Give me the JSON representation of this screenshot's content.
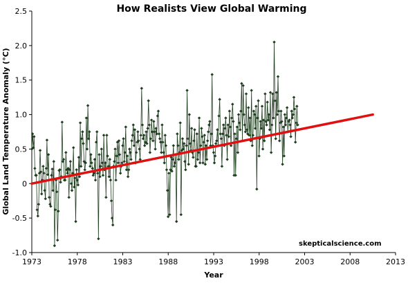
{
  "chart_data": {
    "type": "line",
    "title": "How Realists View Global Warming",
    "xlabel": "Year",
    "ylabel": "Global Land Temperature Anomaly (°C)",
    "watermark": "skepticalscience.com",
    "xlim": [
      1973,
      2013
    ],
    "ylim": [
      -1.0,
      2.5
    ],
    "x_ticks": [
      1973,
      1978,
      1983,
      1988,
      1993,
      1998,
      2003,
      2008,
      2013
    ],
    "y_ticks": [
      "-1.0",
      "-0.5",
      "0",
      "0.5",
      "1.0",
      "1.5",
      "2.0",
      "2.5"
    ],
    "grid": false,
    "colors": {
      "series": "#1f3d1f",
      "marker": "#1f3d1f",
      "trend": "#e01010"
    },
    "series": [
      {
        "name": "",
        "style": "line-with-diamond-markers",
        "x_start": 1973.0,
        "x_step": 0.0833,
        "values": [
          0.5,
          0.72,
          0.52,
          0.68,
          0.22,
          0.12,
          0.12,
          -0.38,
          -0.47,
          -0.3,
          0.15,
          0.48,
          0.17,
          -0.15,
          0.05,
          0.25,
          0.15,
          -0.1,
          -0.22,
          0.22,
          0.63,
          0.13,
          0.42,
          -0.2,
          -0.3,
          -0.33,
          0.12,
          0.21,
          -0.1,
          0.32,
          -0.9,
          -0.38,
          0.05,
          -0.12,
          -0.82,
          -0.4,
          0.19,
          0.2,
          0.02,
          0.1,
          0.89,
          0.32,
          0.35,
          0.05,
          0.05,
          0.45,
          0.2,
          0.15,
          0.22,
          -0.2,
          0.2,
          0.32,
          0.0,
          -0.1,
          0.15,
          0.52,
          -0.05,
          0.08,
          -0.55,
          0.2,
          0.05,
          -0.02,
          0.38,
          0.1,
          0.88,
          0.25,
          0.65,
          0.75,
          0.58,
          0.32,
          0.2,
          0.3,
          0.95,
          0.5,
          1.13,
          0.65,
          0.75,
          0.25,
          0.42,
          0.3,
          0.22,
          0.12,
          0.15,
          0.35,
          0.05,
          0.6,
          0.75,
          0.15,
          -0.8,
          0.42,
          0.1,
          0.25,
          0.5,
          0.3,
          0.12,
          0.7,
          0.2,
          0.3,
          -0.2,
          0.7,
          0.4,
          0.25,
          0.1,
          0.35,
          0.05,
          -0.25,
          -0.5,
          -0.6,
          0.25,
          0.32,
          0.5,
          0.05,
          0.4,
          0.6,
          0.3,
          0.62,
          0.42,
          0.15,
          0.25,
          0.3,
          0.55,
          0.65,
          0.32,
          0.45,
          0.82,
          0.2,
          0.4,
          0.1,
          0.2,
          0.5,
          0.45,
          0.35,
          0.62,
          0.7,
          0.85,
          0.55,
          0.78,
          0.3,
          0.45,
          0.6,
          0.75,
          0.62,
          0.5,
          0.35,
          0.7,
          1.38,
          0.85,
          0.65,
          0.7,
          0.55,
          0.6,
          0.75,
          0.58,
          0.8,
          1.2,
          0.85,
          0.45,
          0.65,
          0.92,
          0.75,
          0.62,
          0.9,
          0.75,
          0.5,
          0.8,
          0.72,
          0.98,
          1.05,
          0.72,
          0.65,
          0.6,
          0.45,
          0.85,
          0.6,
          0.45,
          0.3,
          0.7,
          0.55,
          0.2,
          -0.1,
          -0.48,
          0.15,
          -0.45,
          0.2,
          0.38,
          0.18,
          0.35,
          0.55,
          0.25,
          0.3,
          0.42,
          -0.55,
          0.72,
          0.55,
          0.35,
          0.45,
          0.88,
          -0.45,
          0.48,
          0.65,
          0.5,
          0.58,
          0.32,
          0.2,
          0.55,
          1.35,
          0.65,
          0.28,
          1.0,
          0.58,
          0.48,
          0.8,
          0.45,
          0.38,
          0.62,
          0.78,
          0.25,
          0.25,
          0.72,
          0.35,
          0.45,
          0.95,
          0.3,
          0.55,
          0.8,
          0.68,
          0.3,
          0.6,
          0.7,
          0.28,
          0.55,
          0.35,
          0.62,
          0.75,
          0.85,
          0.9,
          0.55,
          0.72,
          1.58,
          0.55,
          0.45,
          0.3,
          0.4,
          0.58,
          0.62,
          0.78,
          0.55,
          0.98,
          1.22,
          0.72,
          0.65,
          0.25,
          0.72,
          0.85,
          0.55,
          0.8,
          0.95,
          0.7,
          0.35,
          0.85,
          0.68,
          1.05,
          0.82,
          0.55,
          0.95,
          1.15,
          0.9,
          0.12,
          0.72,
          0.12,
          0.65,
          0.82,
          0.45,
          1.0,
          0.88,
          0.78,
          1.05,
          1.45,
          0.62,
          1.42,
          1.0,
          0.85,
          0.75,
          1.3,
          0.78,
          0.72,
          1.1,
          0.7,
          0.95,
          0.62,
          1.35,
          0.55,
          0.7,
          1.05,
          1.0,
          0.8,
          1.12,
          -0.08,
          0.95,
          1.2,
          0.4,
          0.65,
          0.9,
          0.8,
          1.12,
          0.5,
          0.92,
          0.62,
          1.3,
          0.9,
          0.85,
          1.18,
          0.92,
          1.0,
          0.78,
          1.32,
          0.45,
          0.85,
          1.3,
          0.95,
          2.05,
          1.2,
          0.65,
          1.32,
          1.0,
          1.55,
          1.05,
          0.62,
          0.88,
          1.05,
          0.9,
          0.28,
          0.82,
          0.4,
          1.0,
          0.85,
          0.95,
          1.1,
          0.75,
          0.9,
          0.92,
          0.85,
          0.68,
          1.05,
          0.95,
          1.0,
          1.25,
          1.08,
          0.6,
          0.88,
          1.12,
          0.85
        ]
      }
    ],
    "trendline": {
      "x": [
        1973,
        2010.5
      ],
      "y": [
        0.0,
        1.0
      ]
    }
  }
}
